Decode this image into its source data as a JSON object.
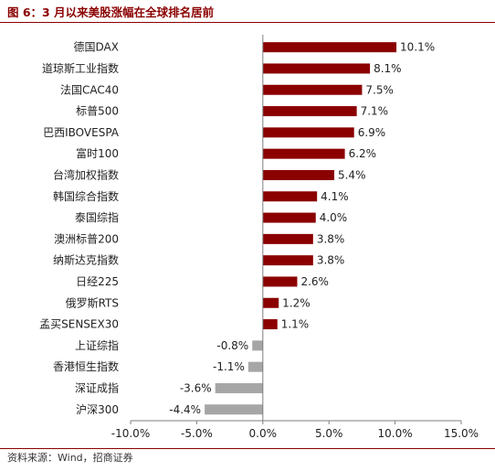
{
  "header": {
    "title": "图 6：3 月以来美股涨幅在全球排名居前"
  },
  "footer": {
    "source": "资料来源：Wind，招商证券"
  },
  "colors": {
    "positive": "#8b0000",
    "negative": "#a6a6a6",
    "title": "#8b0000"
  },
  "chart_data": {
    "type": "bar",
    "orientation": "horizontal",
    "categories": [
      "德国DAX",
      "道琼斯工业指数",
      "法国CAC40",
      "标普500",
      "巴西IBOVESPA",
      "富时100",
      "台湾加权指数",
      "韩国综合指数",
      "泰国综指",
      "澳洲标普200",
      "纳斯达克指数",
      "日经225",
      "俄罗斯RTS",
      "孟买SENSEX30",
      "上证综指",
      "香港恒生指数",
      "深证成指",
      "沪深300"
    ],
    "values": [
      10.1,
      8.1,
      7.5,
      7.1,
      6.9,
      6.2,
      5.4,
      4.1,
      4.0,
      3.8,
      3.8,
      2.6,
      1.2,
      1.1,
      -0.8,
      -1.1,
      -3.6,
      -4.4
    ],
    "value_labels": [
      "10.1%",
      "8.1%",
      "7.5%",
      "7.1%",
      "6.9%",
      "6.2%",
      "5.4%",
      "4.1%",
      "4.0%",
      "3.8%",
      "3.8%",
      "2.6%",
      "1.2%",
      "1.1%",
      "-0.8%",
      "-1.1%",
      "-3.6%",
      "-4.4%"
    ],
    "xlim": [
      -10,
      15
    ],
    "xticks": [
      -10,
      -5,
      0,
      5,
      10,
      15
    ],
    "xtick_labels": [
      "-10.0%",
      "-5.0%",
      "0.0%",
      "5.0%",
      "10.0%",
      "15.0%"
    ],
    "grid": false,
    "legend": "none"
  }
}
